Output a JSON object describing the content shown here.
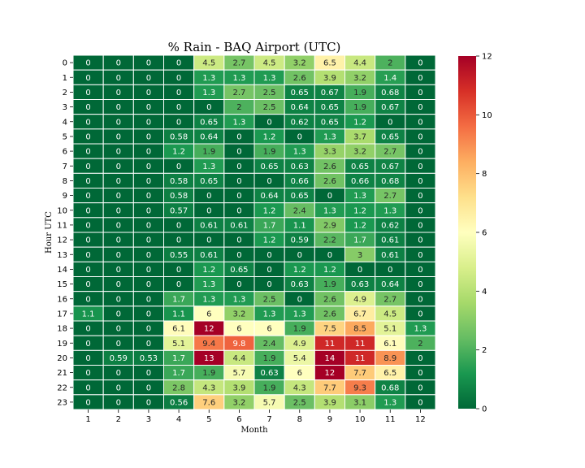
{
  "chart_data": {
    "type": "heatmap",
    "title": "% Rain - BAQ Airport (UTC)",
    "xlabel": "Month",
    "ylabel": "Hour UTC",
    "x_categories": [
      "1",
      "2",
      "3",
      "4",
      "5",
      "6",
      "7",
      "8",
      "9",
      "10",
      "11",
      "12"
    ],
    "y_categories": [
      "0",
      "1",
      "2",
      "3",
      "4",
      "5",
      "6",
      "7",
      "8",
      "9",
      "10",
      "11",
      "12",
      "13",
      "14",
      "15",
      "16",
      "17",
      "18",
      "19",
      "20",
      "21",
      "22",
      "23"
    ],
    "values": [
      [
        "0",
        "0",
        "0",
        "0",
        "4.5",
        "2.7",
        "4.5",
        "3.2",
        "6.5",
        "4.4",
        "2",
        "0"
      ],
      [
        "0",
        "0",
        "0",
        "0",
        "1.3",
        "1.3",
        "1.3",
        "2.6",
        "3.9",
        "3.2",
        "1.4",
        "0"
      ],
      [
        "0",
        "0",
        "0",
        "0",
        "1.3",
        "2.7",
        "2.5",
        "0.65",
        "0.67",
        "1.9",
        "0.68",
        "0"
      ],
      [
        "0",
        "0",
        "0",
        "0",
        "0",
        "2",
        "2.5",
        "0.64",
        "0.65",
        "1.9",
        "0.67",
        "0"
      ],
      [
        "0",
        "0",
        "0",
        "0",
        "0.65",
        "1.3",
        "0",
        "0.62",
        "0.65",
        "1.2",
        "0",
        "0"
      ],
      [
        "0",
        "0",
        "0",
        "0.58",
        "0.64",
        "0",
        "1.2",
        "0",
        "1.3",
        "3.7",
        "0.65",
        "0"
      ],
      [
        "0",
        "0",
        "0",
        "1.2",
        "1.9",
        "0",
        "1.9",
        "1.3",
        "3.3",
        "3.2",
        "2.7",
        "0"
      ],
      [
        "0",
        "0",
        "0",
        "0",
        "1.3",
        "0",
        "0.65",
        "0.63",
        "2.6",
        "0.65",
        "0.67",
        "0"
      ],
      [
        "0",
        "0",
        "0",
        "0.58",
        "0.65",
        "0",
        "0",
        "0.66",
        "2.6",
        "0.66",
        "0.68",
        "0"
      ],
      [
        "0",
        "0",
        "0",
        "0.58",
        "0",
        "0",
        "0.64",
        "0.65",
        "0",
        "1.3",
        "2.7",
        "0"
      ],
      [
        "0",
        "0",
        "0",
        "0.57",
        "0",
        "0",
        "1.2",
        "2.4",
        "1.3",
        "1.2",
        "1.3",
        "0"
      ],
      [
        "0",
        "0",
        "0",
        "0",
        "0.61",
        "0.61",
        "1.7",
        "1.1",
        "2.9",
        "1.2",
        "0.62",
        "0"
      ],
      [
        "0",
        "0",
        "0",
        "0",
        "0",
        "0",
        "1.2",
        "0.59",
        "2.2",
        "1.7",
        "0.61",
        "0"
      ],
      [
        "0",
        "0",
        "0",
        "0.55",
        "0.61",
        "0",
        "0",
        "0",
        "0",
        "3",
        "0.61",
        "0"
      ],
      [
        "0",
        "0",
        "0",
        "0",
        "1.2",
        "0.65",
        "0",
        "1.2",
        "1.2",
        "0",
        "0",
        "0"
      ],
      [
        "0",
        "0",
        "0",
        "0",
        "1.3",
        "0",
        "0",
        "0.63",
        "1.9",
        "0.63",
        "0.64",
        "0"
      ],
      [
        "0",
        "0",
        "0",
        "1.7",
        "1.3",
        "1.3",
        "2.5",
        "0",
        "2.6",
        "4.9",
        "2.7",
        "0"
      ],
      [
        "1.1",
        "0",
        "0",
        "1.1",
        "6",
        "3.2",
        "1.3",
        "1.3",
        "2.6",
        "6.7",
        "4.5",
        "0"
      ],
      [
        "0",
        "0",
        "0",
        "6.1",
        "12",
        "6",
        "6",
        "1.9",
        "7.5",
        "8.5",
        "5.1",
        "1.3"
      ],
      [
        "0",
        "0",
        "0",
        "5.1",
        "9.4",
        "9.8",
        "2.4",
        "4.9",
        "11",
        "11",
        "6.1",
        "2"
      ],
      [
        "0",
        "0.59",
        "0.53",
        "1.7",
        "13",
        "4.4",
        "1.9",
        "5.4",
        "14",
        "11",
        "8.9",
        "0"
      ],
      [
        "0",
        "0",
        "0",
        "1.7",
        "1.9",
        "5.7",
        "0.63",
        "6",
        "12",
        "7.7",
        "6.5",
        "0"
      ],
      [
        "0",
        "0",
        "0",
        "2.8",
        "4.3",
        "3.9",
        "1.9",
        "4.3",
        "7.7",
        "9.3",
        "0.68",
        "0"
      ],
      [
        "0",
        "0",
        "0",
        "0.56",
        "7.6",
        "3.2",
        "5.7",
        "2.5",
        "3.9",
        "3.1",
        "1.3",
        "0"
      ]
    ],
    "vmin": 0,
    "vmax": 12,
    "colormap": "RdYlGn_r",
    "colorbar_ticks": [
      "0",
      "2",
      "4",
      "6",
      "8",
      "10",
      "12"
    ],
    "grid": false,
    "cell_border_color": "#ffffff"
  }
}
